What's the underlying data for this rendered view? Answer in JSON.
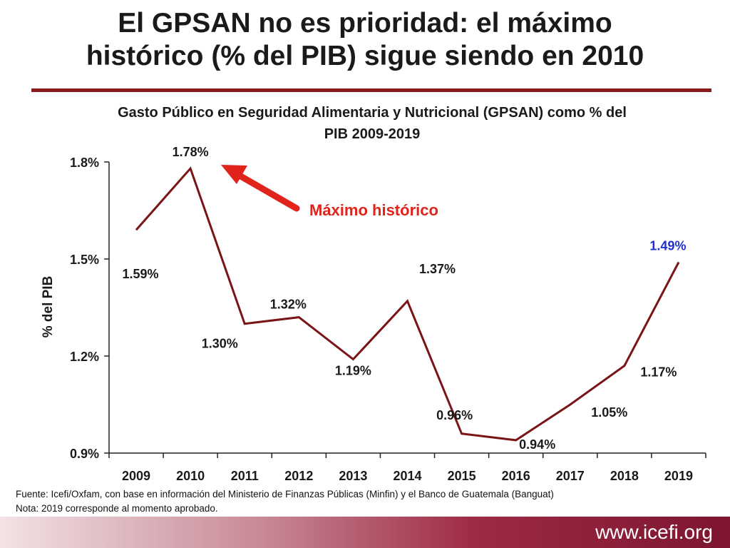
{
  "slide": {
    "title_line1": "El GPSAN no es prioridad: el máximo",
    "title_line2": "histórico (% del PIB) sigue siendo en 2010"
  },
  "chart_data": {
    "type": "line",
    "title_line1": "Gasto Público en Seguridad Alimentaria y Nutricional (GPSAN) como % del",
    "title_line2": "PIB 2009-2019",
    "ylabel": "% del PIB",
    "xlabel": "",
    "ylim": [
      0.9,
      1.8
    ],
    "yticks": [
      0.9,
      1.2,
      1.5,
      1.8
    ],
    "ytick_labels": [
      "0.9%",
      "1.2%",
      "1.5%",
      "1.8%"
    ],
    "categories": [
      "2009",
      "2010",
      "2011",
      "2012",
      "2013",
      "2014",
      "2015",
      "2016",
      "2017",
      "2018",
      "2019"
    ],
    "values": [
      1.59,
      1.78,
      1.3,
      1.32,
      1.19,
      1.37,
      0.96,
      0.94,
      1.05,
      1.17,
      1.49
    ],
    "data_labels": [
      "1.59%",
      "1.78%",
      "1.30%",
      "1.32%",
      "1.19%",
      "1.37%",
      "0.96%",
      "0.94%",
      "1.05%",
      "1.17%",
      "1.49%"
    ],
    "series_color": "#7a1416",
    "highlight_label_color": "#1f2fd0",
    "annotation": {
      "text": "Máximo histórico",
      "color": "#e0241b",
      "points_to": "2010"
    }
  },
  "notes": {
    "source": "Fuente: Icefi/Oxfam, con base en información del Ministerio de Finanzas Públicas (Minfin) y el Banco de Guatemala (Banguat)",
    "note": "Nota: 2019 corresponde al momento aprobado."
  },
  "footer": {
    "url": "www.icefi.org"
  }
}
